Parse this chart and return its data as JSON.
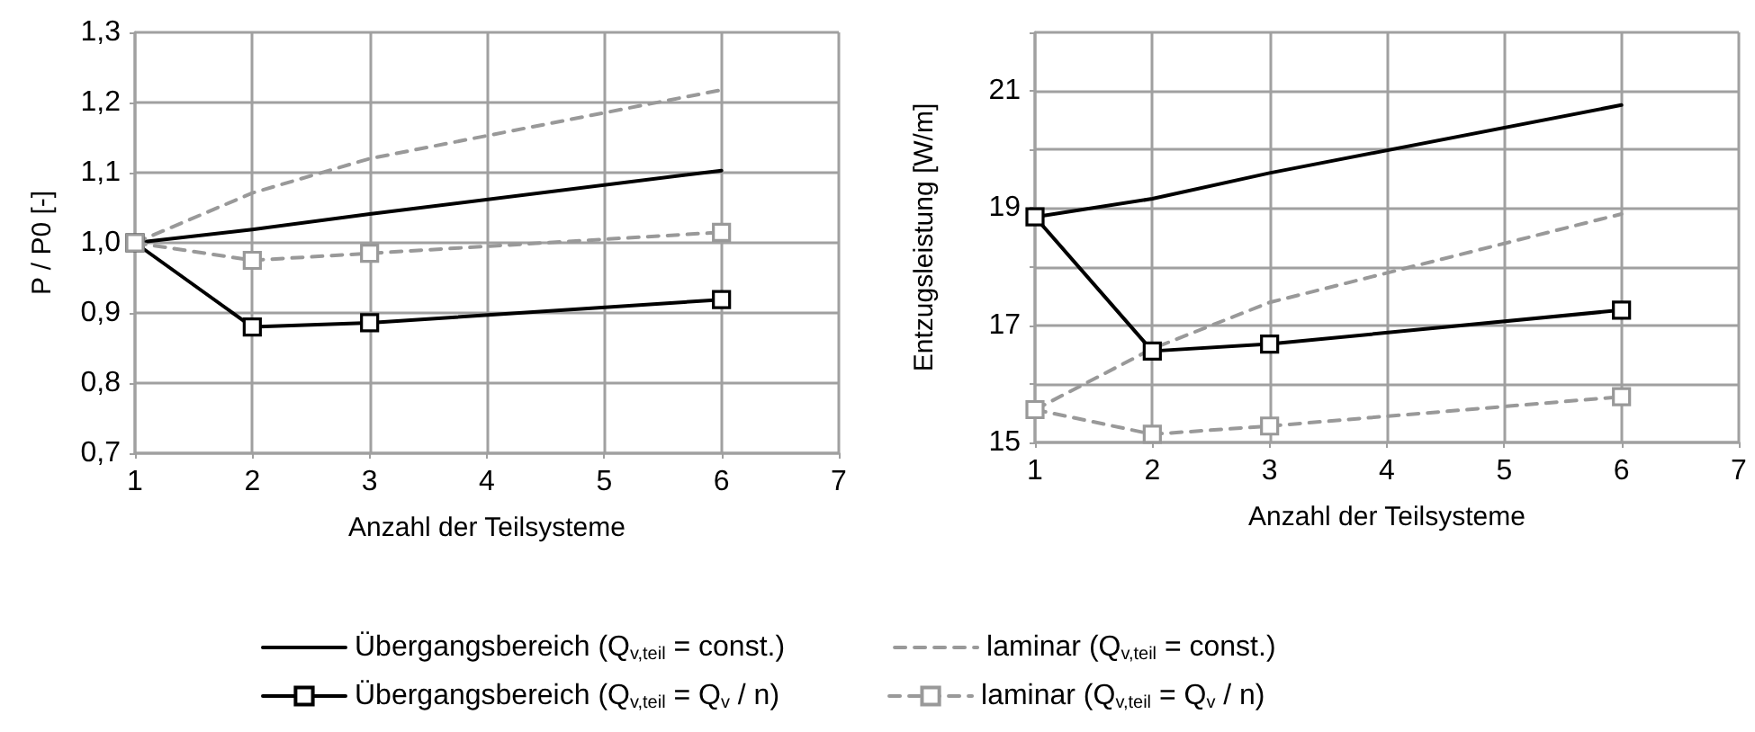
{
  "chart_data": [
    {
      "type": "line",
      "xlabel": "Anzahl der Teilsysteme",
      "ylabel": "P / P0 [-]",
      "xlim": [
        1,
        7
      ],
      "xticks": [
        1,
        2,
        3,
        4,
        5,
        6,
        7
      ],
      "ylim": [
        0.7,
        1.3
      ],
      "yticks": [
        {
          "value": 0.7,
          "label": "0,7"
        },
        {
          "value": 0.8,
          "label": "0,8"
        },
        {
          "value": 0.9,
          "label": "0,9"
        },
        {
          "value": 1.0,
          "label": "1,0"
        },
        {
          "value": 1.1,
          "label": "1,1"
        },
        {
          "value": 1.2,
          "label": "1,2"
        },
        {
          "value": 1.3,
          "label": "1,3"
        }
      ],
      "grid": true,
      "legend": "bottom",
      "x": [
        1,
        2,
        3,
        6
      ],
      "series": [
        {
          "name": "Übergangsbereich (Q$_{v,teil}$ = const.)",
          "color": "#000000",
          "marker": "none",
          "line_style": "solid",
          "values": [
            1.0,
            1.019,
            1.041,
            1.103
          ]
        },
        {
          "name": "laminar (Q$_{v,teil}$ = const.)",
          "color": "#999999",
          "marker": "none",
          "line_style": "dashed",
          "values": [
            1.0,
            1.071,
            1.12,
            1.218
          ]
        },
        {
          "name": "Übergangsbereich (Q$_{v,teil}$ = Q$_{v}$ / n)",
          "color": "#000000",
          "marker": "square",
          "line_style": "solid",
          "values": [
            1.0,
            0.88,
            0.886,
            0.919
          ]
        },
        {
          "name": "laminar (Q$_{v,teil}$ = Q$_{v}$ / n)",
          "color": "#999999",
          "marker": "square",
          "line_style": "dashed",
          "values": [
            1.0,
            0.975,
            0.985,
            1.015
          ]
        }
      ]
    },
    {
      "type": "line",
      "xlabel": "Anzahl der Teilsysteme",
      "ylabel": "Entzugsleistung [W/m]",
      "xlim": [
        1,
        7
      ],
      "xticks": [
        1,
        2,
        3,
        4,
        5,
        6,
        7
      ],
      "ylim": [
        15,
        22
      ],
      "yticks": [
        15,
        {
          "value": 16,
          "label": null
        },
        17,
        {
          "value": 18,
          "label": null
        },
        19,
        {
          "value": 20,
          "label": null
        },
        21,
        {
          "value": 22,
          "label": null
        }
      ],
      "grid": true,
      "x": [
        1,
        2,
        3,
        6
      ],
      "series": [
        {
          "color": "#000000",
          "marker": "none",
          "line_style": "solid",
          "values": [
            18.85,
            19.16,
            19.6,
            20.76
          ]
        },
        {
          "color": "#999999",
          "marker": "none",
          "line_style": "dashed",
          "values": [
            15.56,
            16.6,
            17.39,
            18.9
          ]
        },
        {
          "color": "#000000",
          "marker": "square",
          "line_style": "solid",
          "values": [
            18.85,
            16.56,
            16.68,
            17.26
          ]
        },
        {
          "color": "#999999",
          "marker": "square",
          "line_style": "dashed",
          "values": [
            15.56,
            15.14,
            15.28,
            15.78
          ]
        }
      ]
    }
  ]
}
